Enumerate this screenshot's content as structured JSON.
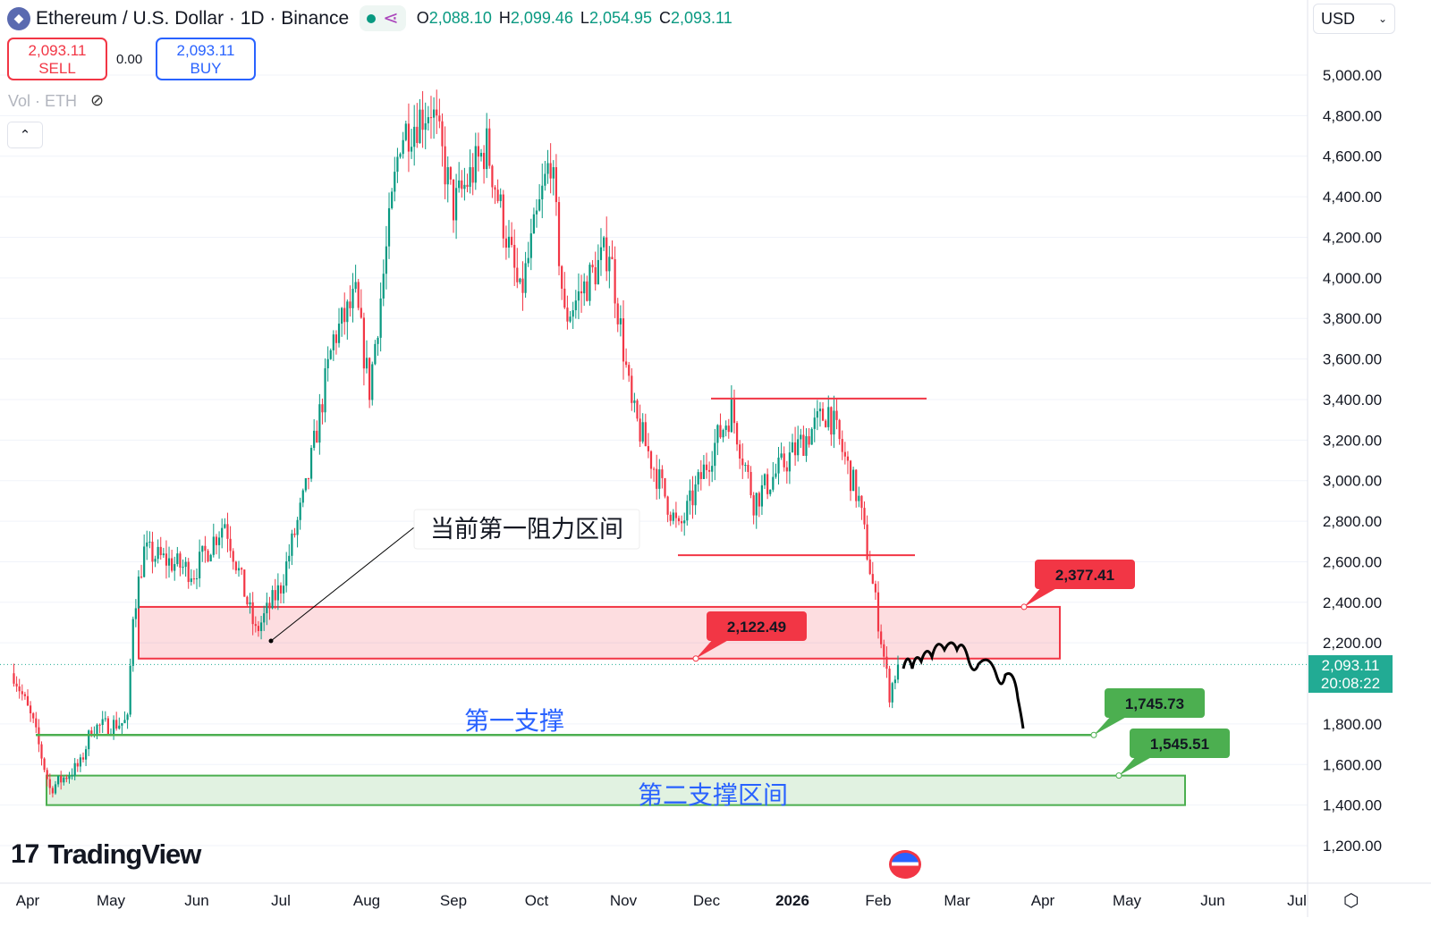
{
  "header": {
    "symbol_title": "Ethereum / U.S. Dollar · 1D · Binance",
    "ohlc": {
      "o_label": "O",
      "o": "2,088.10",
      "h_label": "H",
      "h": "2,099.46",
      "l_label": "L",
      "l": "2,054.95",
      "c_label": "C",
      "c": "2,093.11"
    }
  },
  "trade": {
    "sell_price": "2,093.11",
    "sell_label": "SELL",
    "spread": "0.00",
    "buy_price": "2,093.11",
    "buy_label": "BUY"
  },
  "volume_label": "Vol · ETH",
  "currency": "USD",
  "branding": "TradingView",
  "current_price": {
    "price": "2,093.11",
    "countdown": "20:08:22",
    "color": "#22ab94"
  },
  "colors": {
    "up": "#089981",
    "down": "#f23645",
    "resistance": "#f23645",
    "support": "#4caf50",
    "annotation_text": "#2962ff"
  },
  "chart_data": {
    "type": "candlestick",
    "ylim": [
      1100,
      5100
    ],
    "y_ticks": [
      "5,000.00",
      "4,800.00",
      "4,600.00",
      "4,400.00",
      "4,200.00",
      "4,000.00",
      "3,800.00",
      "3,600.00",
      "3,400.00",
      "3,200.00",
      "3,000.00",
      "2,800.00",
      "2,600.00",
      "2,400.00",
      "2,200.00",
      "1,800.00",
      "1,600.00",
      "1,400.00",
      "1,200.00"
    ],
    "x_ticks": [
      "Apr",
      "May",
      "Jun",
      "Jul",
      "Aug",
      "Sep",
      "Oct",
      "Nov",
      "Dec",
      "2026",
      "Feb",
      "Mar",
      "Apr",
      "May",
      "Jun",
      "Jul"
    ],
    "price_path": [
      [
        "2025-03-27",
        2050
      ],
      [
        "2025-04-03",
        1800
      ],
      [
        "2025-04-09",
        1480
      ],
      [
        "2025-04-20",
        1600
      ],
      [
        "2025-04-24",
        1780
      ],
      [
        "2025-05-07",
        1810
      ],
      [
        "2025-05-09",
        2350
      ],
      [
        "2025-05-13",
        2650
      ],
      [
        "2025-05-31",
        2550
      ],
      [
        "2025-06-11",
        2800
      ],
      [
        "2025-06-22",
        2250
      ],
      [
        "2025-07-01",
        2480
      ],
      [
        "2025-07-10",
        2950
      ],
      [
        "2025-07-20",
        3700
      ],
      [
        "2025-07-28",
        3900
      ],
      [
        "2025-08-02",
        3450
      ],
      [
        "2025-08-13",
        4700
      ],
      [
        "2025-08-24",
        4850
      ],
      [
        "2025-09-01",
        4350
      ],
      [
        "2025-09-13",
        4650
      ],
      [
        "2025-09-25",
        3900
      ],
      [
        "2025-10-06",
        4600
      ],
      [
        "2025-10-11",
        3800
      ],
      [
        "2025-10-27",
        4150
      ],
      [
        "2025-11-04",
        3350
      ],
      [
        "2025-11-21",
        2750
      ],
      [
        "2025-12-03",
        3150
      ],
      [
        "2025-12-10",
        3350
      ],
      [
        "2025-12-18",
        2900
      ],
      [
        "2026-01-14",
        3350
      ],
      [
        "2026-01-25",
        2900
      ],
      [
        "2026-01-31",
        2400
      ],
      [
        "2026-02-05",
        1950
      ],
      [
        "2026-02-08",
        2093
      ]
    ],
    "levels": {
      "resistance_zone": [
        2122.49,
        2377.41
      ],
      "resistance_zone_label_top": "2,377.41",
      "resistance_zone_label_bottom": "2,122.49",
      "range_top": 3405,
      "range_bottom": 2632,
      "support_1": 1745.73,
      "support_1_label": "1,745.73",
      "support_2_top": 1545.51,
      "support_2_bottom": 1400,
      "support_2_label": "1,545.51"
    },
    "annotations": {
      "resistance": "当前第一阻力区间",
      "support_1": "第一支撑",
      "support_2": "第二支撑区间"
    }
  }
}
